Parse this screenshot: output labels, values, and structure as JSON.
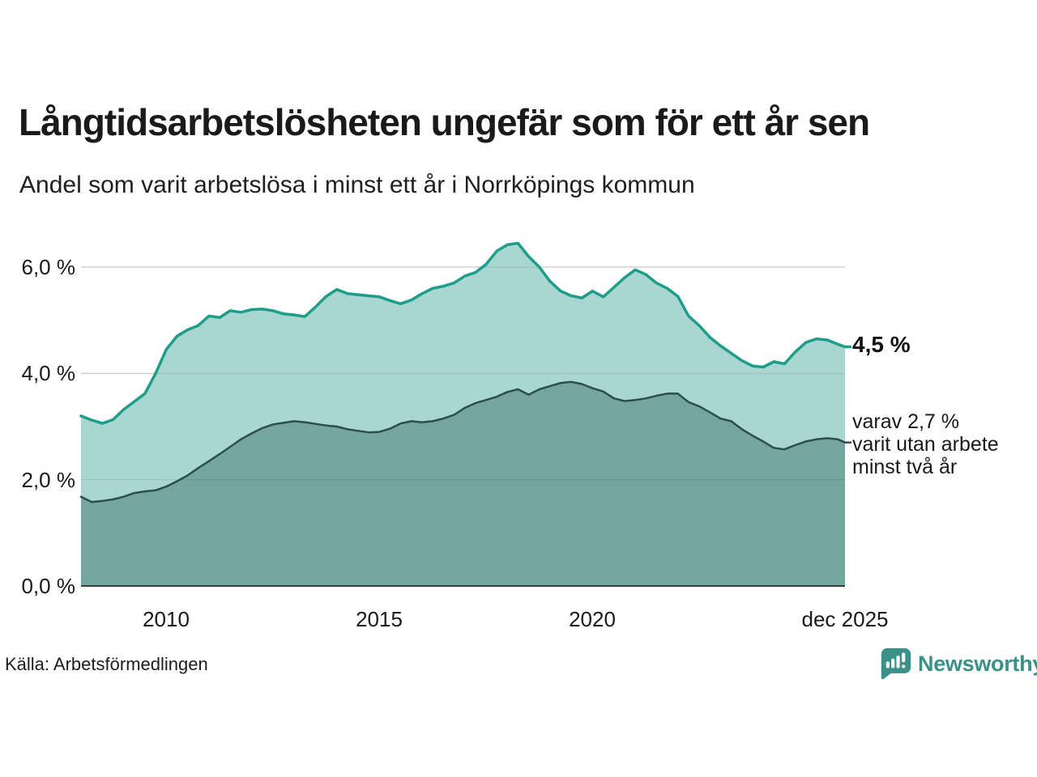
{
  "header": {
    "title": "Långtidsarbetslösheten ungefär som för ett år sen",
    "subtitle": "Andel som varit arbetslösa i minst ett år i Norrköpings kommun"
  },
  "chart": {
    "y_axis": {
      "tick_labels": [
        "6,0 %",
        "4,0 %",
        "2,0 %",
        "0,0 %"
      ],
      "tick_values": [
        6,
        4,
        2,
        0
      ]
    },
    "x_axis": {
      "ticks": [
        {
          "label": "2010",
          "year": 2010
        },
        {
          "label": "2015",
          "year": 2015
        },
        {
          "label": "2020",
          "year": 2020
        },
        {
          "label": "dec 2025",
          "year": 2025.92
        }
      ]
    },
    "annotations": {
      "latest_total": "4,5 %",
      "secondary_lines": [
        "varav 2,7 %",
        "varit utan arbete",
        "minst två år"
      ]
    },
    "colors": {
      "line_total": "#1f9d8b",
      "fill_total": "#a9d6d0",
      "line_two_years": "#2d4f4b",
      "fill_two_years": "#74a59f",
      "gridline": "#dedede",
      "axis_line": "#3c3c3c",
      "brand_teal": "#3a9188"
    }
  },
  "chart_data": {
    "type": "area",
    "title": "Långtidsarbetslösheten ungefär som för ett år sen",
    "subtitle": "Andel som varit arbetslösa i minst ett år i Norrköpings kommun",
    "xlabel": "",
    "ylabel": "%",
    "xlim": [
      2008.0,
      2025.92
    ],
    "ylim": [
      0,
      6.6
    ],
    "grid": true,
    "x": [
      2008.0,
      2008.25,
      2008.5,
      2008.75,
      2009.0,
      2009.25,
      2009.5,
      2009.75,
      2010.0,
      2010.25,
      2010.5,
      2010.75,
      2011.0,
      2011.25,
      2011.5,
      2011.75,
      2012.0,
      2012.25,
      2012.5,
      2012.75,
      2013.0,
      2013.25,
      2013.5,
      2013.75,
      2014.0,
      2014.25,
      2014.5,
      2014.75,
      2015.0,
      2015.25,
      2015.5,
      2015.75,
      2016.0,
      2016.25,
      2016.5,
      2016.75,
      2017.0,
      2017.25,
      2017.5,
      2017.75,
      2018.0,
      2018.25,
      2018.5,
      2018.75,
      2019.0,
      2019.25,
      2019.5,
      2019.75,
      2020.0,
      2020.25,
      2020.5,
      2020.75,
      2021.0,
      2021.25,
      2021.5,
      2021.75,
      2022.0,
      2022.25,
      2022.5,
      2022.75,
      2023.0,
      2023.25,
      2023.5,
      2023.75,
      2024.0,
      2024.25,
      2024.5,
      2024.75,
      2025.0,
      2025.25,
      2025.5,
      2025.75,
      2025.92
    ],
    "series": [
      {
        "name": "Arbetslösa minst ett år",
        "end_label": "4,5 %",
        "values": [
          3.2,
          3.12,
          3.06,
          3.13,
          3.32,
          3.47,
          3.62,
          4.0,
          4.45,
          4.7,
          4.82,
          4.9,
          5.08,
          5.05,
          5.18,
          5.15,
          5.2,
          5.21,
          5.18,
          5.12,
          5.1,
          5.07,
          5.25,
          5.45,
          5.58,
          5.5,
          5.48,
          5.46,
          5.44,
          5.37,
          5.31,
          5.38,
          5.5,
          5.6,
          5.64,
          5.7,
          5.83,
          5.9,
          6.05,
          6.3,
          6.42,
          6.45,
          6.2,
          6.0,
          5.73,
          5.55,
          5.46,
          5.42,
          5.55,
          5.44,
          5.62,
          5.8,
          5.95,
          5.86,
          5.7,
          5.6,
          5.45,
          5.08,
          4.9,
          4.68,
          4.52,
          4.38,
          4.24,
          4.14,
          4.12,
          4.22,
          4.18,
          4.4,
          4.58,
          4.65,
          4.63,
          4.55,
          4.5
        ]
      },
      {
        "name": "Arbetslösa minst två år",
        "end_label": "2,7 %",
        "values": [
          1.68,
          1.58,
          1.6,
          1.63,
          1.68,
          1.75,
          1.78,
          1.8,
          1.87,
          1.97,
          2.08,
          2.22,
          2.35,
          2.48,
          2.62,
          2.76,
          2.87,
          2.97,
          3.04,
          3.07,
          3.1,
          3.08,
          3.05,
          3.02,
          3.0,
          2.95,
          2.92,
          2.89,
          2.9,
          2.96,
          3.06,
          3.1,
          3.08,
          3.1,
          3.15,
          3.22,
          3.35,
          3.44,
          3.5,
          3.56,
          3.65,
          3.7,
          3.6,
          3.7,
          3.76,
          3.82,
          3.84,
          3.8,
          3.72,
          3.66,
          3.53,
          3.48,
          3.5,
          3.53,
          3.58,
          3.62,
          3.62,
          3.46,
          3.38,
          3.27,
          3.15,
          3.1,
          2.95,
          2.83,
          2.72,
          2.6,
          2.57,
          2.65,
          2.72,
          2.76,
          2.78,
          2.76,
          2.7
        ]
      }
    ]
  },
  "footer": {
    "source": "Källa: Arbetsförmedlingen",
    "brand": "Newsworthy"
  }
}
